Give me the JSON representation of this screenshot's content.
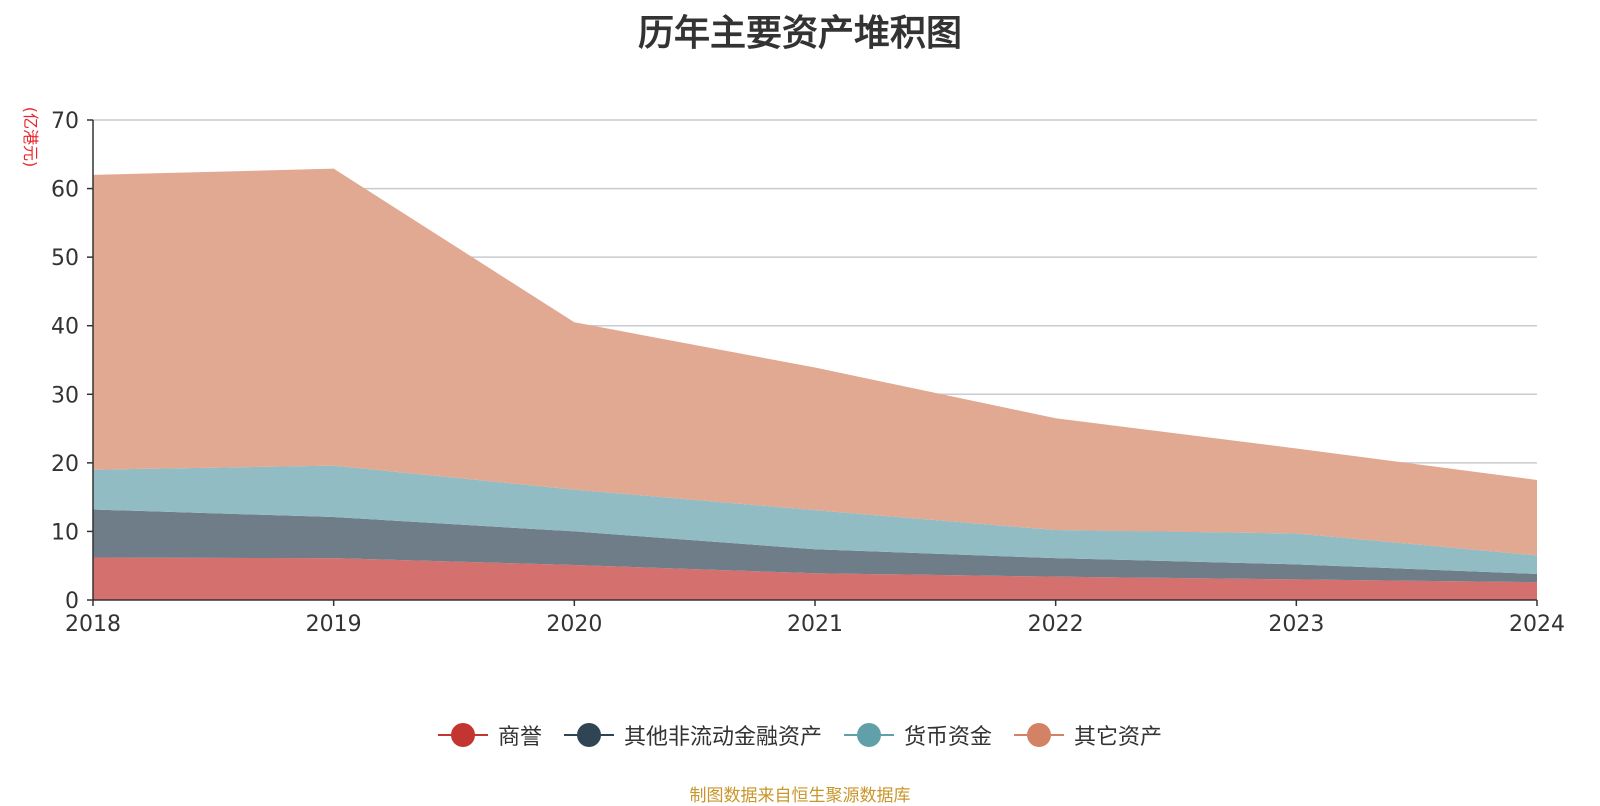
{
  "chart_data": {
    "type": "area",
    "stacked": true,
    "title": "历年主要资产堆积图",
    "unit_label": "(亿港元)",
    "categories": [
      "2018",
      "2019",
      "2020",
      "2021",
      "2022",
      "2023",
      "2024"
    ],
    "ylim": [
      0,
      70
    ],
    "yticks": [
      0,
      10,
      20,
      30,
      40,
      50,
      60,
      70
    ],
    "grid": true,
    "legend_position": "bottom",
    "series": [
      {
        "name": "商誉",
        "color": "#c23531",
        "fill": "#d4706e",
        "values": [
          6.2,
          6.1,
          5.1,
          3.9,
          3.4,
          3.0,
          2.6
        ]
      },
      {
        "name": "其他非流动金融资产",
        "color": "#2f4554",
        "fill": "#6f7d88",
        "values": [
          7.0,
          6.0,
          4.9,
          3.5,
          2.7,
          2.2,
          1.2
        ]
      },
      {
        "name": "货币资金",
        "color": "#61a0a8",
        "fill": "#91bcc3",
        "values": [
          5.8,
          7.5,
          6.1,
          5.7,
          4.1,
          4.5,
          2.7
        ]
      },
      {
        "name": "其它资产",
        "color": "#d48265",
        "fill": "#e1a892",
        "values": [
          43.0,
          43.3,
          24.4,
          20.8,
          16.3,
          12.4,
          11.0
        ]
      }
    ]
  },
  "footer": {
    "source": "制图数据来自恒生聚源数据库"
  }
}
